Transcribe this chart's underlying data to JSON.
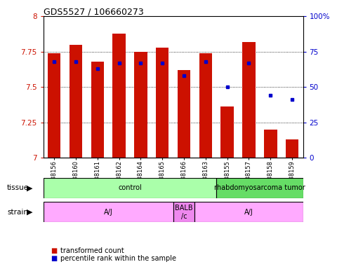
{
  "title": "GDS5527 / 106660273",
  "samples": [
    "GSM738156",
    "GSM738160",
    "GSM738161",
    "GSM738162",
    "GSM738164",
    "GSM738165",
    "GSM738166",
    "GSM738163",
    "GSM738155",
    "GSM738157",
    "GSM738158",
    "GSM738159"
  ],
  "bar_values": [
    7.74,
    7.8,
    7.68,
    7.88,
    7.75,
    7.78,
    7.62,
    7.74,
    7.36,
    7.82,
    7.2,
    7.13
  ],
  "dot_values": [
    68,
    68,
    63,
    67,
    67,
    67,
    58,
    68,
    50,
    67,
    44,
    41
  ],
  "bar_color": "#cc1100",
  "dot_color": "#0000cc",
  "ymin": 7.0,
  "ymax": 8.0,
  "y_ticks": [
    7.0,
    7.25,
    7.5,
    7.75,
    8.0
  ],
  "y_tick_labels": [
    "7",
    "7.25",
    "7.5",
    "7.75",
    "8"
  ],
  "y2min": 0,
  "y2max": 100,
  "y2_ticks": [
    0,
    25,
    50,
    75,
    100
  ],
  "y2_tick_labels": [
    "0",
    "25",
    "50",
    "75",
    "100%"
  ],
  "tissue_groups": [
    {
      "label": "control",
      "start": 0,
      "end": 8,
      "color": "#aaffaa"
    },
    {
      "label": "rhabdomyosarcoma tumor",
      "start": 8,
      "end": 12,
      "color": "#66dd66"
    }
  ],
  "strain_groups": [
    {
      "label": "A/J",
      "start": 0,
      "end": 6,
      "color": "#ffaaff"
    },
    {
      "label": "BALB\n/c",
      "start": 6,
      "end": 7,
      "color": "#ee88ee"
    },
    {
      "label": "A/J",
      "start": 7,
      "end": 12,
      "color": "#ffaaff"
    }
  ],
  "legend_red": "transformed count",
  "legend_blue": "percentile rank within the sample",
  "tissue_label": "tissue",
  "strain_label": "strain"
}
